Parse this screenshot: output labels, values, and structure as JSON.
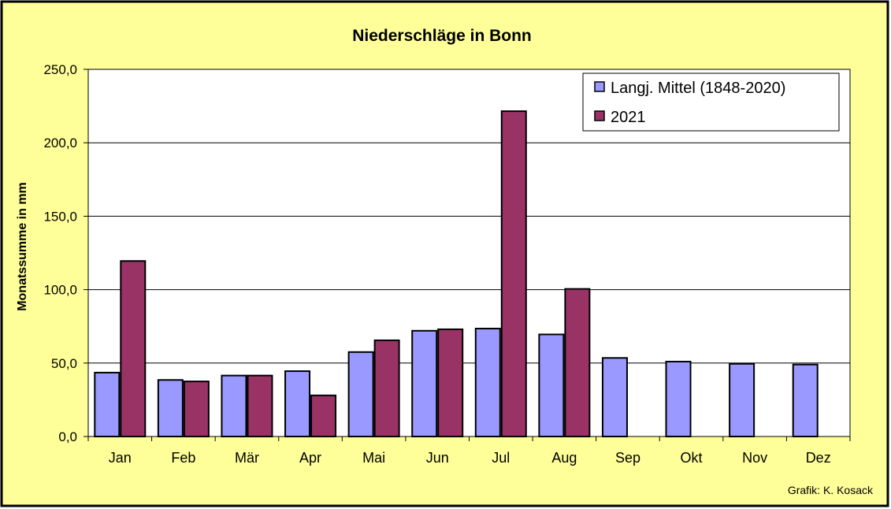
{
  "chart_data": {
    "type": "bar",
    "title": "Niederschläge in Bonn",
    "ylabel": "Monatssumme in mm",
    "xlabel": "",
    "ylim": [
      0,
      250
    ],
    "yticks": [
      "0,0",
      "50,0",
      "100,0",
      "150,0",
      "200,0",
      "250,0"
    ],
    "categories": [
      "Jan",
      "Feb",
      "Mär",
      "Apr",
      "Mai",
      "Jun",
      "Jul",
      "Aug",
      "Sep",
      "Okt",
      "Nov",
      "Dez"
    ],
    "series": [
      {
        "name": "Langj. Mittel (1848-2020)",
        "color": "#9999ff",
        "values": [
          43.5,
          38.5,
          41.5,
          44.5,
          57.5,
          72.0,
          73.5,
          69.5,
          53.5,
          51.0,
          49.5,
          49.0
        ]
      },
      {
        "name": "2021",
        "color": "#993366",
        "values": [
          119.5,
          37.5,
          41.5,
          28.0,
          65.5,
          73.0,
          221.5,
          100.5,
          null,
          null,
          null,
          null
        ]
      }
    ],
    "grid": true,
    "legend_position": "top-right",
    "credit": "Grafik:  K. Kosack",
    "background_color": "#ffff99",
    "plot_background_color": "#ffffff"
  }
}
